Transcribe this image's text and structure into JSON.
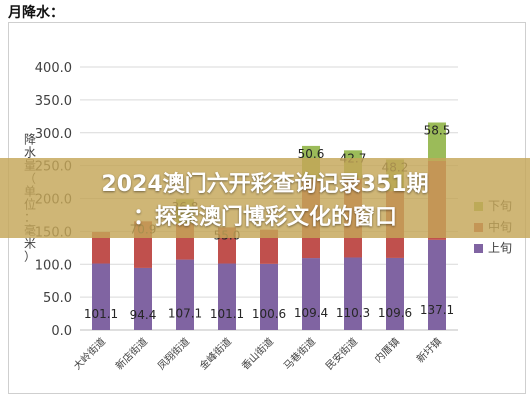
{
  "page_heading": "月降水：",
  "banner": {
    "line1": "2024澳门六开彩查询记录351期",
    "line2": "：探索澳门博彩文化的窗口"
  },
  "chart_data": {
    "type": "bar",
    "stacked": true,
    "title": "",
    "xlabel": "",
    "ylabel": "降水量（单位：毫米）",
    "ylim": [
      0,
      400
    ],
    "yticks": [
      0,
      50,
      100,
      150,
      200,
      250,
      300,
      350,
      400
    ],
    "ytick_labels": [
      "0.0",
      "50.0",
      "100.0",
      "150.0",
      "200.0",
      "250.0",
      "300.0",
      "350.0",
      "400.0"
    ],
    "grid": true,
    "legend_position": "right",
    "categories": [
      "大岭街道",
      "新店街道",
      "凤翔街道",
      "金峰街道",
      "香山街道",
      "马巷街道",
      "民安街道",
      "内厝镇",
      "新圩镇"
    ],
    "series": [
      {
        "name": "上旬",
        "color": "#8064a2",
        "values": [
          101.1,
          94.4,
          107.1,
          101.1,
          100.6,
          109.4,
          110.3,
          109.6,
          137.1
        ],
        "labels": [
          "101.1",
          "94.4",
          "107.1",
          "101.1",
          "100.6",
          "109.4",
          "110.3",
          "109.6",
          "137.1"
        ]
      },
      {
        "name": "中旬",
        "color": "#c0504d",
        "values": [
          48.0,
          70.9,
          55.0,
          55.0,
          52.0,
          120.0,
          120.3,
          101.6,
          120.0
        ],
        "labels": [
          "",
          "70.9",
          "",
          "55.0",
          "",
          "",
          "",
          "",
          ""
        ]
      },
      {
        "name": "下旬",
        "color": "#9bbb59",
        "values": [
          0,
          0,
          36.8,
          0,
          0,
          50.6,
          42.7,
          48.2,
          58.5
        ],
        "labels": [
          "",
          "",
          "36.8",
          "",
          "",
          "50.6",
          "42.7",
          "48.2",
          "58.5"
        ]
      }
    ]
  }
}
